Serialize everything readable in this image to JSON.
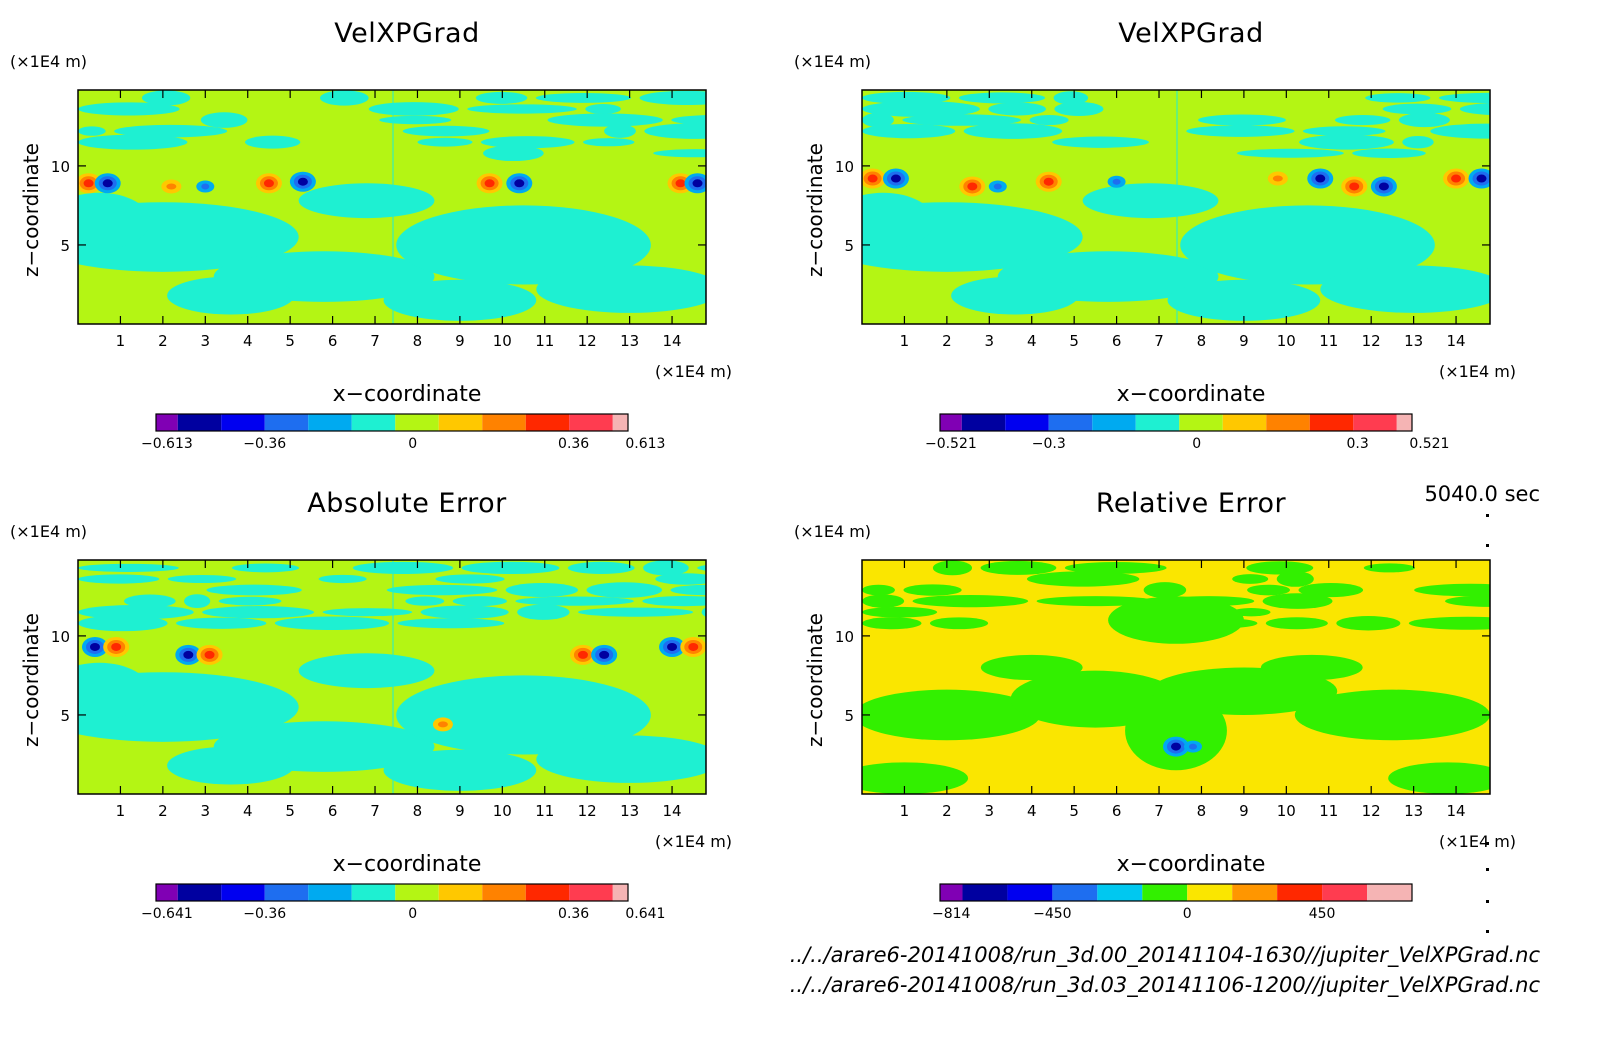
{
  "time_label": "5040.0 sec",
  "files": [
    "../../arare6-20141008/run_3d.00_20141104-1630//jupiter_VelXPGrad.nc",
    "../../arare6-20141008/run_3d.03_20141106-1200//jupiter_VelXPGrad.nc"
  ],
  "panels": [
    {
      "title": "VelXPGrad",
      "unit_z": "(×1E4 m)",
      "unit_x": "(×1E4 m)",
      "xlabel": "x−coordinate",
      "zlabel": "z−coordinate"
    },
    {
      "title": "VelXPGrad",
      "unit_z": "(×1E4 m)",
      "unit_x": "(×1E4 m)",
      "xlabel": "x−coordinate",
      "zlabel": "z−coordinate"
    },
    {
      "title": "Absolute Error",
      "unit_z": "(×1E4 m)",
      "unit_x": "(×1E4 m)",
      "xlabel": "x−coordinate",
      "zlabel": "z−coordinate"
    },
    {
      "title": "Relative Error",
      "unit_z": "(×1E4 m)",
      "unit_x": "(×1E4 m)",
      "xlabel": "x−coordinate",
      "zlabel": "z−coordinate"
    }
  ],
  "chart_data": [
    {
      "type": "heatmap",
      "title": "VelXPGrad",
      "xlabel": "x−coordinate",
      "ylabel": "z−coordinate",
      "xlim": [
        0,
        14.8
      ],
      "ylim": [
        0,
        14.8
      ],
      "xticks": [
        "1",
        "2",
        "3",
        "4",
        "5",
        "6",
        "7",
        "8",
        "9",
        "10",
        "11",
        "12",
        "13",
        "14"
      ],
      "yticks": [
        "5",
        "10"
      ],
      "colorbar_ticks": [
        "−0.613",
        "−0.36",
        "0",
        "0.36",
        "0.613"
      ],
      "background_levels": [
        "#b4f514",
        "#1ef0d2"
      ],
      "features": [
        {
          "x": 0.25,
          "z": 8.9,
          "kind": "pos"
        },
        {
          "x": 0.7,
          "z": 8.9,
          "kind": "neg"
        },
        {
          "x": 4.5,
          "z": 8.9,
          "kind": "pos"
        },
        {
          "x": 5.3,
          "z": 9.0,
          "kind": "neg"
        },
        {
          "x": 9.7,
          "z": 8.9,
          "kind": "pos"
        },
        {
          "x": 10.4,
          "z": 8.9,
          "kind": "neg"
        },
        {
          "x": 14.2,
          "z": 8.9,
          "kind": "pos"
        },
        {
          "x": 14.6,
          "z": 8.9,
          "kind": "neg"
        },
        {
          "x": 2.2,
          "z": 8.7,
          "kind": "weakpos"
        },
        {
          "x": 3.0,
          "z": 8.7,
          "kind": "weakneg"
        }
      ]
    },
    {
      "type": "heatmap",
      "title": "VelXPGrad",
      "xlabel": "x−coordinate",
      "ylabel": "z−coordinate",
      "xlim": [
        0,
        14.8
      ],
      "ylim": [
        0,
        14.8
      ],
      "xticks": [
        "1",
        "2",
        "3",
        "4",
        "5",
        "6",
        "7",
        "8",
        "9",
        "10",
        "11",
        "12",
        "13",
        "14"
      ],
      "yticks": [
        "5",
        "10"
      ],
      "colorbar_ticks": [
        "−0.521",
        "−0.3",
        "0",
        "0.3",
        "0.521"
      ],
      "background_levels": [
        "#b4f514",
        "#1ef0d2"
      ],
      "features": [
        {
          "x": 0.25,
          "z": 9.2,
          "kind": "pos"
        },
        {
          "x": 0.8,
          "z": 9.2,
          "kind": "neg"
        },
        {
          "x": 2.6,
          "z": 8.7,
          "kind": "pos"
        },
        {
          "x": 3.2,
          "z": 8.7,
          "kind": "weakneg"
        },
        {
          "x": 4.4,
          "z": 9.0,
          "kind": "pos"
        },
        {
          "x": 6.0,
          "z": 9.0,
          "kind": "weakneg"
        },
        {
          "x": 9.8,
          "z": 9.2,
          "kind": "weakpos"
        },
        {
          "x": 10.8,
          "z": 9.2,
          "kind": "neg"
        },
        {
          "x": 11.6,
          "z": 8.7,
          "kind": "pos"
        },
        {
          "x": 12.3,
          "z": 8.7,
          "kind": "neg"
        },
        {
          "x": 14.0,
          "z": 9.2,
          "kind": "pos"
        },
        {
          "x": 14.6,
          "z": 9.2,
          "kind": "neg"
        }
      ]
    },
    {
      "type": "heatmap",
      "title": "Absolute Error",
      "xlabel": "x−coordinate",
      "ylabel": "z−coordinate",
      "xlim": [
        0,
        14.8
      ],
      "ylim": [
        0,
        14.8
      ],
      "xticks": [
        "1",
        "2",
        "3",
        "4",
        "5",
        "6",
        "7",
        "8",
        "9",
        "10",
        "11",
        "12",
        "13",
        "14"
      ],
      "yticks": [
        "5",
        "10"
      ],
      "colorbar_ticks": [
        "−0.641",
        "−0.36",
        "0",
        "0.36",
        "0.641"
      ],
      "background_levels": [
        "#b4f514",
        "#1ef0d2"
      ],
      "features": [
        {
          "x": 0.4,
          "z": 9.3,
          "kind": "neg"
        },
        {
          "x": 0.9,
          "z": 9.3,
          "kind": "pos"
        },
        {
          "x": 2.6,
          "z": 8.8,
          "kind": "neg"
        },
        {
          "x": 3.1,
          "z": 8.8,
          "kind": "pos"
        },
        {
          "x": 11.9,
          "z": 8.8,
          "kind": "pos"
        },
        {
          "x": 12.4,
          "z": 8.8,
          "kind": "neg"
        },
        {
          "x": 14.0,
          "z": 9.3,
          "kind": "neg"
        },
        {
          "x": 14.5,
          "z": 9.3,
          "kind": "pos"
        },
        {
          "x": 8.6,
          "z": 4.4,
          "kind": "weakpos"
        }
      ]
    },
    {
      "type": "heatmap",
      "title": "Relative Error",
      "xlabel": "x−coordinate",
      "ylabel": "z−coordinate",
      "xlim": [
        0,
        14.8
      ],
      "ylim": [
        0,
        14.8
      ],
      "xticks": [
        "1",
        "2",
        "3",
        "4",
        "5",
        "6",
        "7",
        "8",
        "9",
        "10",
        "11",
        "12",
        "13",
        "14"
      ],
      "yticks": [
        "5",
        "10"
      ],
      "colorbar_ticks": [
        "−814",
        "−450",
        "0",
        "450"
      ],
      "background_levels": [
        "#fae600",
        "#32f000"
      ],
      "features": [
        {
          "x": 7.4,
          "z": 3.0,
          "kind": "neg"
        },
        {
          "x": 7.8,
          "z": 3.0,
          "kind": "weakneg"
        }
      ]
    }
  ]
}
